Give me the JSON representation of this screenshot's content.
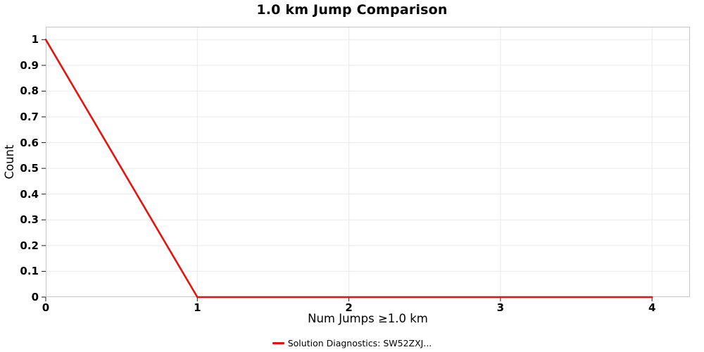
{
  "figure": {
    "title": "1.0 km Jump Comparison",
    "x_axis_label": "Num Jumps ≥1.0 km",
    "y_axis_label": "Count",
    "legend": {
      "label": "Solution Diagnostics: SW52ZXJ...",
      "color": "#e8120c"
    }
  },
  "chart_data": {
    "type": "line",
    "title": "1.0 km Jump Comparison",
    "xlabel": "Num Jumps ≥1.0 km",
    "ylabel": "Count",
    "x": [
      0,
      1,
      2,
      3,
      4
    ],
    "series": [
      {
        "name": "Solution Diagnostics: SW52ZXJ...",
        "color": "#e8120c",
        "values": [
          1,
          0,
          0,
          0,
          0
        ]
      }
    ],
    "x_ticks": [
      0,
      1,
      2,
      3,
      4
    ],
    "y_ticks": [
      0,
      0.1,
      0.2,
      0.3,
      0.4,
      0.5,
      0.6,
      0.7,
      0.8,
      0.9,
      1
    ],
    "xlim": [
      0,
      4.25
    ],
    "ylim": [
      0,
      1.05
    ],
    "grid": true,
    "legend_position": "bottom"
  }
}
